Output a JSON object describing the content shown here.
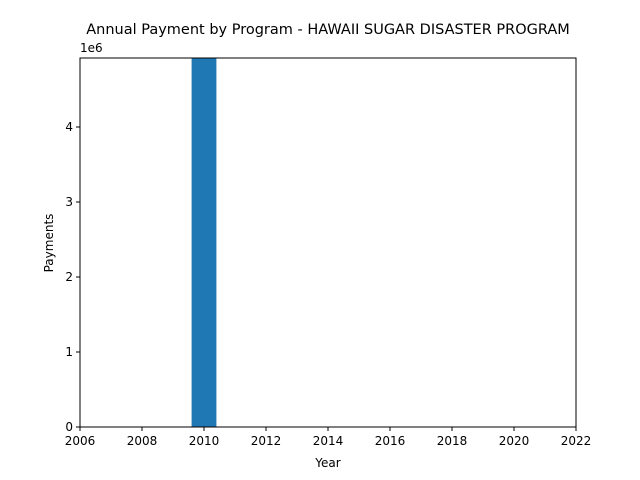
{
  "chart_data": {
    "type": "bar",
    "title": "Annual Payment by Program - HAWAII SUGAR DISASTER PROGRAM",
    "xlabel": "Year",
    "ylabel": "Payments",
    "y_offset_label": "1e6",
    "x": [
      2010
    ],
    "values": [
      4920000
    ],
    "bar_width": 0.8,
    "xlim": [
      2006,
      2022
    ],
    "ylim": [
      0,
      4920000
    ],
    "xticks": [
      2006,
      2008,
      2010,
      2012,
      2014,
      2016,
      2018,
      2020,
      2022
    ],
    "yticks": [
      0,
      1000000,
      2000000,
      3000000,
      4000000
    ],
    "ytick_labels": [
      "0",
      "1",
      "2",
      "3",
      "4"
    ],
    "bar_color": "#1f77b4",
    "grid": false,
    "legend": "none"
  }
}
